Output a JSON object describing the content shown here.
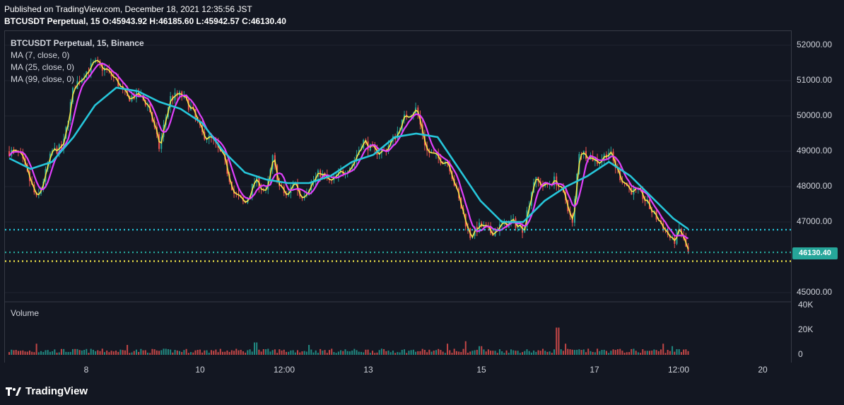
{
  "header": {
    "published": "Published on TradingView.com, December 18, 2021 12:35:56 JST",
    "ohlc": "BTCUSDT Perpetual, 15 O:45943.92 H:46185.60 L:45942.57 C:46130.40"
  },
  "legend": {
    "symbol": "BTCUSDT Perpetual, 15, Binance",
    "ma7": "MA (7, close, 0)",
    "ma25": "MA (25, close, 0)",
    "ma99": "MA (99, close, 0)",
    "volume_label": "Volume"
  },
  "colors": {
    "background": "#131722",
    "up": "#26a69a",
    "down": "#ef5350",
    "ma7": "#f5e84a",
    "ma25": "#e040fb",
    "ma99": "#26c6da"
  },
  "price_tag": "46130.40",
  "brand": "TradingView",
  "chart_data": {
    "type": "candlestick",
    "price_axis": {
      "ticks": [
        "52000.00",
        "51000.00",
        "50000.00",
        "49000.00",
        "48000.00",
        "47000.00",
        "45000.00"
      ],
      "ylim": [
        44800,
        52400
      ]
    },
    "volume_axis": {
      "ticks": [
        "40K",
        "20K",
        "0"
      ],
      "ylim": [
        0,
        40000
      ]
    },
    "x_ticks": [
      "8",
      "10",
      "12:00",
      "13",
      "15",
      "17",
      "12:00",
      "20"
    ],
    "horizontal_lines": [
      {
        "value": 46780,
        "color": "#26c6da",
        "style": "dotted"
      },
      {
        "value": 46140,
        "color": "#26a69a",
        "style": "dotted"
      },
      {
        "value": 45890,
        "color": "#f5e84a",
        "style": "dotted"
      }
    ],
    "close_series": [
      {
        "t": 0,
        "p": 49000
      },
      {
        "t": 0.5,
        "p": 48900
      },
      {
        "t": 1,
        "p": 48100
      },
      {
        "t": 1.3,
        "p": 47600
      },
      {
        "t": 1.6,
        "p": 48200
      },
      {
        "t": 2,
        "p": 49000
      },
      {
        "t": 2.5,
        "p": 49100
      },
      {
        "t": 3,
        "p": 50800
      },
      {
        "t": 3.5,
        "p": 51200
      },
      {
        "t": 4,
        "p": 51500
      },
      {
        "t": 4.5,
        "p": 51300
      },
      {
        "t": 5,
        "p": 51000
      },
      {
        "t": 5.5,
        "p": 50500
      },
      {
        "t": 6,
        "p": 50600
      },
      {
        "t": 6.5,
        "p": 50300
      },
      {
        "t": 7,
        "p": 49100
      },
      {
        "t": 7.5,
        "p": 50500
      },
      {
        "t": 8,
        "p": 50600
      },
      {
        "t": 8.5,
        "p": 50200
      },
      {
        "t": 9,
        "p": 49500
      },
      {
        "t": 9.5,
        "p": 49300
      },
      {
        "t": 10,
        "p": 48800
      },
      {
        "t": 10.5,
        "p": 47800
      },
      {
        "t": 11,
        "p": 47500
      },
      {
        "t": 11.5,
        "p": 48200
      },
      {
        "t": 12,
        "p": 47800
      },
      {
        "t": 12.3,
        "p": 48800
      },
      {
        "t": 12.6,
        "p": 48000
      },
      {
        "t": 13,
        "p": 47700
      },
      {
        "t": 13.3,
        "p": 48200
      },
      {
        "t": 13.6,
        "p": 47700
      },
      {
        "t": 14,
        "p": 48000
      },
      {
        "t": 14.5,
        "p": 48400
      },
      {
        "t": 15,
        "p": 48100
      },
      {
        "t": 15.5,
        "p": 48400
      },
      {
        "t": 16,
        "p": 48600
      },
      {
        "t": 16.5,
        "p": 49300
      },
      {
        "t": 17,
        "p": 49000
      },
      {
        "t": 17.5,
        "p": 49000
      },
      {
        "t": 18,
        "p": 49400
      },
      {
        "t": 18.5,
        "p": 50000
      },
      {
        "t": 19,
        "p": 50200
      },
      {
        "t": 19.5,
        "p": 49000
      },
      {
        "t": 20,
        "p": 48800
      },
      {
        "t": 20.5,
        "p": 48700
      },
      {
        "t": 21,
        "p": 47600
      },
      {
        "t": 21.5,
        "p": 46600
      },
      {
        "t": 22,
        "p": 46900
      },
      {
        "t": 22.5,
        "p": 46700
      },
      {
        "t": 23,
        "p": 46900
      },
      {
        "t": 23.5,
        "p": 47000
      },
      {
        "t": 24,
        "p": 46800
      },
      {
        "t": 24.5,
        "p": 48200
      },
      {
        "t": 25,
        "p": 48000
      },
      {
        "t": 25.5,
        "p": 48200
      },
      {
        "t": 26,
        "p": 47600
      },
      {
        "t": 26.3,
        "p": 46900
      },
      {
        "t": 26.6,
        "p": 49000
      },
      {
        "t": 27,
        "p": 48900
      },
      {
        "t": 27.5,
        "p": 48700
      },
      {
        "t": 28,
        "p": 49000
      },
      {
        "t": 28.5,
        "p": 48300
      },
      {
        "t": 29,
        "p": 47900
      },
      {
        "t": 29.5,
        "p": 47800
      },
      {
        "t": 30,
        "p": 47300
      },
      {
        "t": 30.5,
        "p": 46900
      },
      {
        "t": 31,
        "p": 46400
      },
      {
        "t": 31.3,
        "p": 46800
      },
      {
        "t": 31.7,
        "p": 46100
      }
    ],
    "ma99_series": [
      {
        "t": 0,
        "p": 48800
      },
      {
        "t": 1,
        "p": 48500
      },
      {
        "t": 2,
        "p": 48700
      },
      {
        "t": 3,
        "p": 49400
      },
      {
        "t": 4,
        "p": 50300
      },
      {
        "t": 5,
        "p": 50800
      },
      {
        "t": 6,
        "p": 50700
      },
      {
        "t": 7,
        "p": 50400
      },
      {
        "t": 8,
        "p": 50200
      },
      {
        "t": 9,
        "p": 49800
      },
      {
        "t": 10,
        "p": 49000
      },
      {
        "t": 11,
        "p": 48400
      },
      {
        "t": 12,
        "p": 48200
      },
      {
        "t": 13,
        "p": 48100
      },
      {
        "t": 14,
        "p": 48100
      },
      {
        "t": 15,
        "p": 48300
      },
      {
        "t": 16,
        "p": 48700
      },
      {
        "t": 17,
        "p": 48900
      },
      {
        "t": 18,
        "p": 49400
      },
      {
        "t": 19,
        "p": 49500
      },
      {
        "t": 20,
        "p": 49400
      },
      {
        "t": 21,
        "p": 48500
      },
      {
        "t": 22,
        "p": 47600
      },
      {
        "t": 23,
        "p": 47000
      },
      {
        "t": 24,
        "p": 47000
      },
      {
        "t": 25,
        "p": 47600
      },
      {
        "t": 26,
        "p": 48000
      },
      {
        "t": 27,
        "p": 48300
      },
      {
        "t": 28,
        "p": 48700
      },
      {
        "t": 29,
        "p": 48300
      },
      {
        "t": 30,
        "p": 47700
      },
      {
        "t": 31,
        "p": 47100
      },
      {
        "t": 31.7,
        "p": 46800
      }
    ],
    "volume_series": [
      {
        "t": 1.3,
        "v": 9000
      },
      {
        "t": 5.5,
        "v": 8000
      },
      {
        "t": 11.5,
        "v": 10000
      },
      {
        "t": 14,
        "v": 8000
      },
      {
        "t": 20.5,
        "v": 9000
      },
      {
        "t": 21.3,
        "v": 11000
      },
      {
        "t": 22,
        "v": 7000
      },
      {
        "t": 26,
        "v": 9000
      },
      {
        "t": 25.6,
        "v": 22000
      },
      {
        "t": 25.7,
        "v": 20000
      },
      {
        "t": 30.5,
        "v": 9000
      },
      {
        "t": 31,
        "v": 7000
      }
    ],
    "t_range": [
      -0.2,
      36.5
    ]
  }
}
